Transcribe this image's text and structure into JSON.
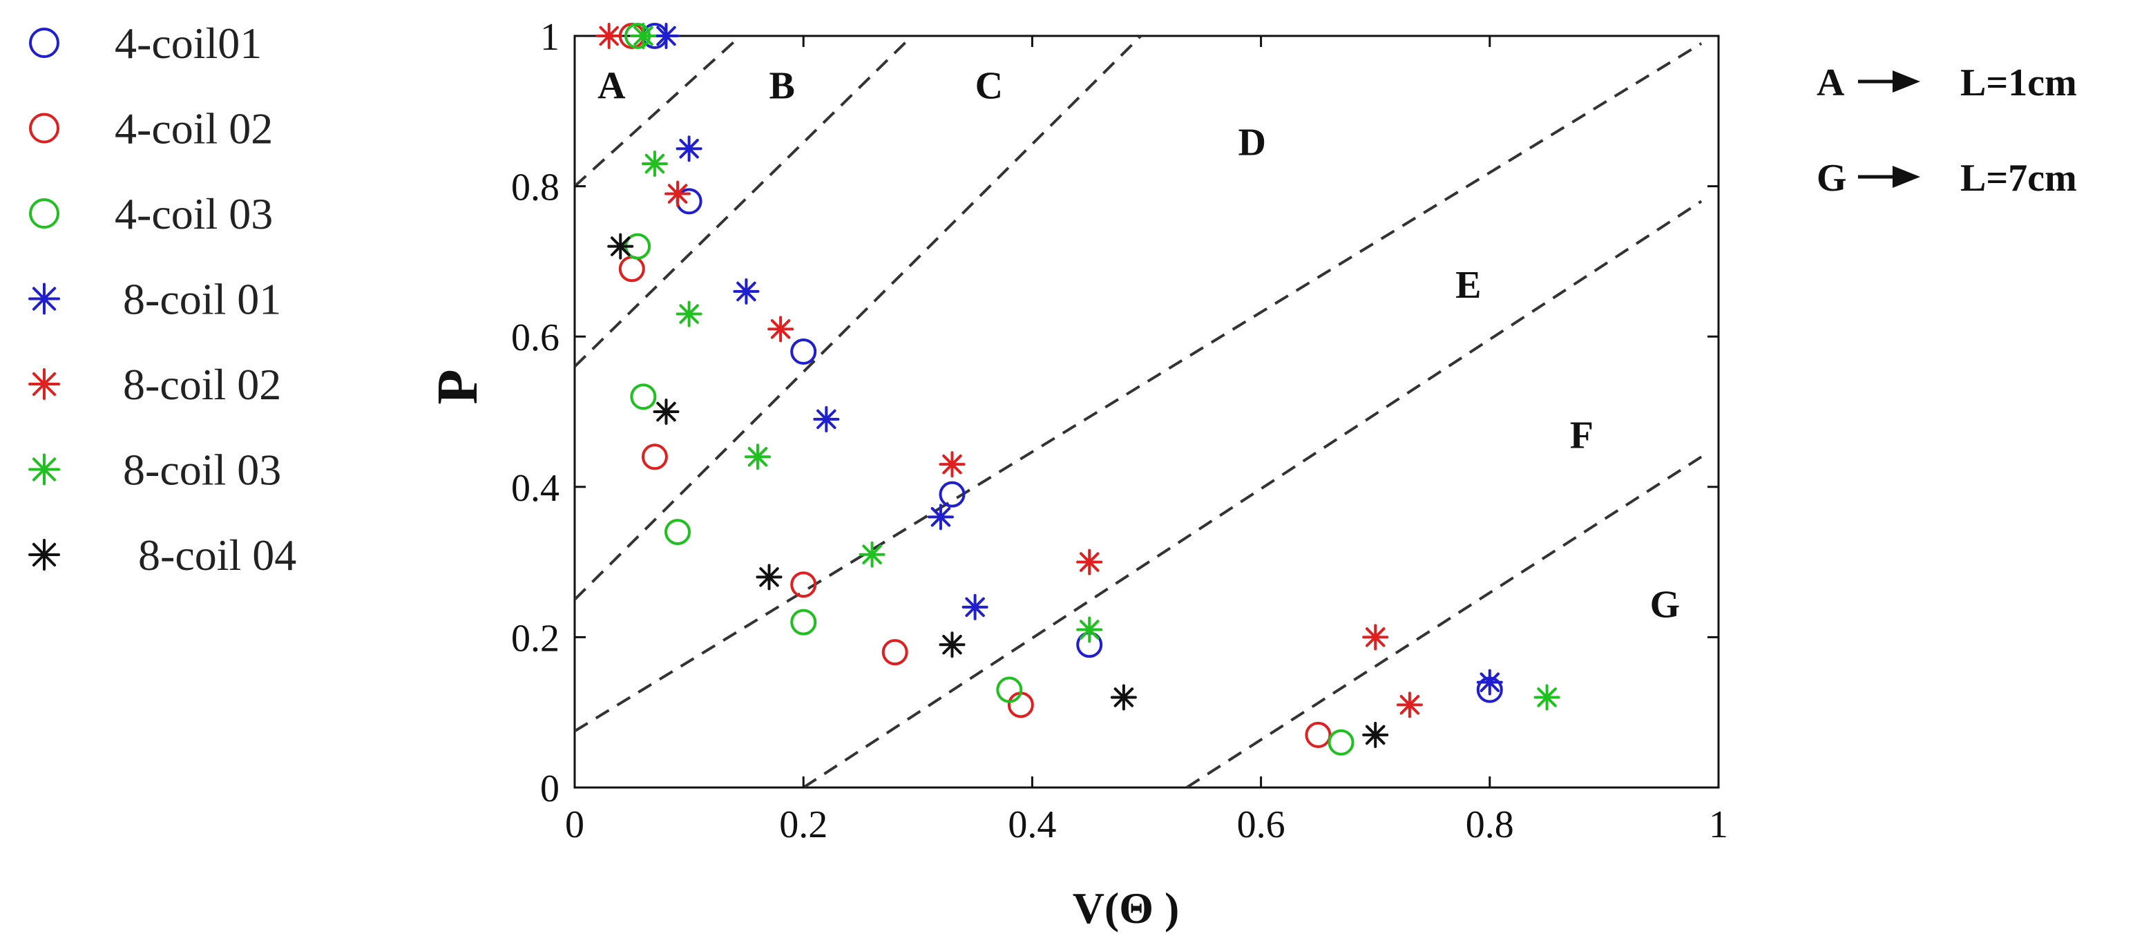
{
  "chart_data": {
    "type": "scatter",
    "title": "",
    "xlabel": "V(Θ )",
    "ylabel": "P",
    "xlim": [
      0,
      1
    ],
    "ylim": [
      0,
      1
    ],
    "x_ticks": [
      0,
      0.2,
      0.4,
      0.6,
      0.8,
      1
    ],
    "x_tick_labels": [
      "0",
      "0.2",
      "0.4",
      "0.6",
      "0.8",
      "1"
    ],
    "y_ticks": [
      0,
      0.2,
      0.4,
      0.6,
      0.8,
      1
    ],
    "y_tick_labels": [
      "0",
      "0.2",
      "0.4",
      "0.6",
      "0.8",
      "1"
    ],
    "grid": false,
    "legend_position": "left-outside",
    "boundaries": [
      {
        "x1": 0,
        "y1": 0.8,
        "x2": 0.145,
        "y2": 1.0
      },
      {
        "x1": 0,
        "y1": 0.56,
        "x2": 0.295,
        "y2": 1.0
      },
      {
        "x1": 0,
        "y1": 0.25,
        "x2": 0.495,
        "y2": 1.0
      },
      {
        "x1": 0,
        "y1": 0.075,
        "x2": 0.985,
        "y2": 0.99
      },
      {
        "x1": 0.2,
        "y1": 0.0,
        "x2": 0.985,
        "y2": 0.78
      },
      {
        "x1": 0.535,
        "y1": 0.0,
        "x2": 0.985,
        "y2": 0.44
      }
    ],
    "regions": [
      {
        "label": "A",
        "x": 0.02,
        "y": 0.935
      },
      {
        "label": "B",
        "x": 0.17,
        "y": 0.935
      },
      {
        "label": "C",
        "x": 0.35,
        "y": 0.935
      },
      {
        "label": "D",
        "x": 0.58,
        "y": 0.86
      },
      {
        "label": "E",
        "x": 0.77,
        "y": 0.67
      },
      {
        "label": "F",
        "x": 0.87,
        "y": 0.47
      },
      {
        "label": "G",
        "x": 0.94,
        "y": 0.245
      }
    ],
    "series": [
      {
        "name": "4-coil01",
        "marker": "circle",
        "color": "#1f1fd0",
        "x": [
          0.07,
          0.1,
          0.2,
          0.33,
          0.45,
          0.8
        ],
        "y": [
          1.0,
          0.78,
          0.58,
          0.39,
          0.19,
          0.13
        ]
      },
      {
        "name": "4-coil 02",
        "marker": "circle",
        "color": "#e02020",
        "x": [
          0.05,
          0.05,
          0.07,
          0.2,
          0.28,
          0.39,
          0.65
        ],
        "y": [
          1.0,
          0.69,
          0.44,
          0.27,
          0.18,
          0.11,
          0.07
        ]
      },
      {
        "name": "4-coil 03",
        "marker": "circle",
        "color": "#20c020",
        "x": [
          0.055,
          0.055,
          0.06,
          0.09,
          0.2,
          0.38,
          0.67
        ],
        "y": [
          1.0,
          0.72,
          0.52,
          0.34,
          0.22,
          0.13,
          0.06
        ]
      },
      {
        "name": "8-coil 01",
        "marker": "star",
        "color": "#1f1fd0",
        "x": [
          0.08,
          0.1,
          0.15,
          0.22,
          0.32,
          0.35,
          0.8
        ],
        "y": [
          1.0,
          0.85,
          0.66,
          0.49,
          0.36,
          0.24,
          0.14
        ]
      },
      {
        "name": "8-coil 02",
        "marker": "star",
        "color": "#e02020",
        "x": [
          0.03,
          0.09,
          0.18,
          0.33,
          0.45,
          0.7,
          0.73
        ],
        "y": [
          1.0,
          0.79,
          0.61,
          0.43,
          0.3,
          0.2,
          0.11
        ]
      },
      {
        "name": "8-coil 03",
        "marker": "star",
        "color": "#20c020",
        "x": [
          0.06,
          0.07,
          0.1,
          0.16,
          0.26,
          0.45,
          0.85
        ],
        "y": [
          1.0,
          0.83,
          0.63,
          0.44,
          0.31,
          0.21,
          0.12
        ]
      },
      {
        "name": "8-coil 04",
        "marker": "star",
        "color": "#111111",
        "x": [
          0.04,
          0.08,
          0.17,
          0.33,
          0.48,
          0.7
        ],
        "y": [
          0.72,
          0.5,
          0.28,
          0.19,
          0.12,
          0.07
        ]
      }
    ],
    "annotations": [
      {
        "left": "A",
        "arrow": "right-arrow",
        "right": "L=1cm"
      },
      {
        "left": "G",
        "arrow": "right-arrow",
        "right": "L=7cm"
      }
    ]
  }
}
